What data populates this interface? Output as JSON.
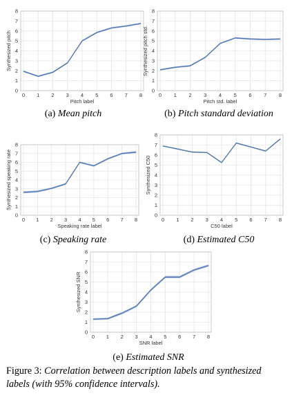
{
  "colors": {
    "line": "#4c72b0",
    "band": "#b9c9e6"
  },
  "chart_data": [
    {
      "type": "line",
      "id": "a",
      "x": [
        0,
        1,
        2,
        3,
        4,
        5,
        6,
        7,
        8
      ],
      "y": [
        1.95,
        1.45,
        1.85,
        2.8,
        5.0,
        5.85,
        6.3,
        6.5,
        6.75
      ],
      "ci": [
        0.08,
        0.08,
        0.08,
        0.08,
        0.08,
        0.08,
        0.08,
        0.08,
        0.08
      ],
      "xlabel": "Pitch label",
      "ylabel": "Synthesized pitch",
      "xlim": [
        0,
        8
      ],
      "ylim": [
        0,
        8
      ],
      "xticks": [
        "0",
        "1",
        "2",
        "3",
        "4",
        "5",
        "6",
        "7",
        "8"
      ],
      "yticks": [
        "0",
        "1",
        "2",
        "3",
        "4",
        "5",
        "6",
        "7",
        "8"
      ],
      "caption_prefix": "(a) ",
      "caption_title": "Mean pitch",
      "grid": true
    },
    {
      "type": "line",
      "id": "b",
      "x": [
        0,
        1,
        2,
        3,
        4,
        5,
        6,
        7,
        8
      ],
      "y": [
        2.1,
        2.35,
        2.5,
        3.35,
        4.75,
        5.3,
        5.2,
        5.15,
        5.2
      ],
      "ci": [
        0.08,
        0.08,
        0.08,
        0.08,
        0.08,
        0.08,
        0.08,
        0.08,
        0.08
      ],
      "xlabel": "Pitch std. label",
      "ylabel": "Synthesized pitch std.",
      "xlim": [
        0,
        8
      ],
      "ylim": [
        0,
        8
      ],
      "xticks": [
        "0",
        "1",
        "2",
        "3",
        "4",
        "5",
        "6",
        "7",
        "8"
      ],
      "yticks": [
        "0",
        "1",
        "2",
        "3",
        "4",
        "5",
        "6",
        "7",
        "8"
      ],
      "caption_prefix": "(b) ",
      "caption_title": "Pitch standard deviation",
      "grid": true
    },
    {
      "type": "line",
      "id": "c",
      "x": [
        0,
        1,
        2,
        3,
        4,
        5,
        6,
        7,
        8
      ],
      "y": [
        2.6,
        2.7,
        3.05,
        3.55,
        6.0,
        5.6,
        6.4,
        7.0,
        7.15
      ],
      "ci": [
        0.12,
        0.12,
        0.1,
        0.1,
        0.1,
        0.1,
        0.1,
        0.1,
        0.12
      ],
      "xlabel": "Speaking rate label",
      "ylabel": "Synthesized speaking rate",
      "xlim": [
        0,
        8
      ],
      "ylim": [
        0,
        8
      ],
      "xticks": [
        "0",
        "1",
        "2",
        "3",
        "4",
        "5",
        "6",
        "7",
        "8"
      ],
      "yticks": [
        "0",
        "1",
        "2",
        "3",
        "4",
        "5",
        "6",
        "7",
        "8"
      ],
      "caption_prefix": "(c) ",
      "caption_title": "Speaking rate",
      "grid": true
    },
    {
      "type": "line",
      "id": "d",
      "x": [
        0,
        1,
        2,
        3,
        4,
        5,
        6,
        7,
        8
      ],
      "y": [
        6.9,
        6.6,
        6.3,
        6.25,
        5.25,
        7.2,
        6.8,
        6.4,
        7.6
      ],
      "ci": [
        0.06,
        0.06,
        0.06,
        0.06,
        0.08,
        0.06,
        0.06,
        0.06,
        0.06
      ],
      "xlabel": "C50 label",
      "ylabel": "Synthesized C50",
      "xlim": [
        0,
        8
      ],
      "ylim": [
        0,
        8
      ],
      "xticks": [
        "0",
        "1",
        "2",
        "3",
        "4",
        "5",
        "6",
        "7",
        "8"
      ],
      "yticks": [
        "0",
        "1",
        "2",
        "3",
        "4",
        "5",
        "6",
        "7",
        "8"
      ],
      "caption_prefix": "(d) ",
      "caption_title": "Estimated C50",
      "grid": true
    },
    {
      "type": "line",
      "id": "e",
      "x": [
        0,
        1,
        2,
        3,
        4,
        5,
        6,
        7,
        8
      ],
      "y": [
        1.3,
        1.35,
        1.9,
        2.6,
        4.2,
        5.5,
        5.5,
        6.2,
        6.65
      ],
      "ci": [
        0.1,
        0.1,
        0.12,
        0.12,
        0.12,
        0.12,
        0.12,
        0.12,
        0.12
      ],
      "xlabel": "SNR label",
      "ylabel": "Synthesized SNR",
      "xlim": [
        0,
        8
      ],
      "ylim": [
        0,
        8
      ],
      "xticks": [
        "0",
        "1",
        "2",
        "3",
        "4",
        "5",
        "6",
        "7",
        "8"
      ],
      "yticks": [
        "0",
        "1",
        "2",
        "3",
        "4",
        "5",
        "6",
        "7",
        "8"
      ],
      "caption_prefix": "(e) ",
      "caption_title": "Estimated SNR",
      "grid": true
    }
  ],
  "figure_caption": {
    "prefix": "Figure 3: ",
    "text": "Correlation between description labels and synthesized labels (with 95% confidence intervals)."
  }
}
